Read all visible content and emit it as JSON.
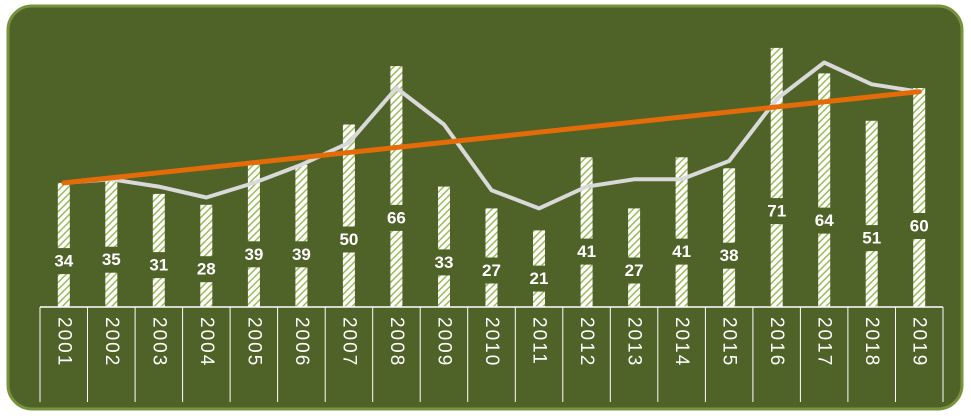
{
  "chart_data": {
    "type": "bar",
    "categories": [
      "2001",
      "2002",
      "2003",
      "2004",
      "2005",
      "2006",
      "2007",
      "2008",
      "2009",
      "2010",
      "2011",
      "2012",
      "2013",
      "2014",
      "2015",
      "2016",
      "2017",
      "2018",
      "2019"
    ],
    "values": [
      34,
      35,
      31,
      28,
      39,
      39,
      50,
      66,
      33,
      27,
      21,
      41,
      27,
      41,
      38,
      71,
      64,
      51,
      60
    ],
    "line_overlay": {
      "type": "line",
      "values": [
        34,
        35,
        33,
        30,
        34,
        39,
        45,
        60,
        50,
        32,
        27,
        33,
        35,
        35,
        40,
        57,
        67,
        61,
        59
      ]
    },
    "trend_line": {
      "type": "linear",
      "start": 34,
      "end": 59
    },
    "ylim": [
      0,
      80
    ],
    "grid": false,
    "legend": "none",
    "colors": {
      "background": "#4f6228",
      "border": "#77933c",
      "bar_fill": "#ffffff",
      "bar_hatch": "#9bbb59",
      "line": "#d9d9d9",
      "trend": "#e36c09",
      "axis": "#ffffff",
      "text": "#ffffff"
    }
  }
}
